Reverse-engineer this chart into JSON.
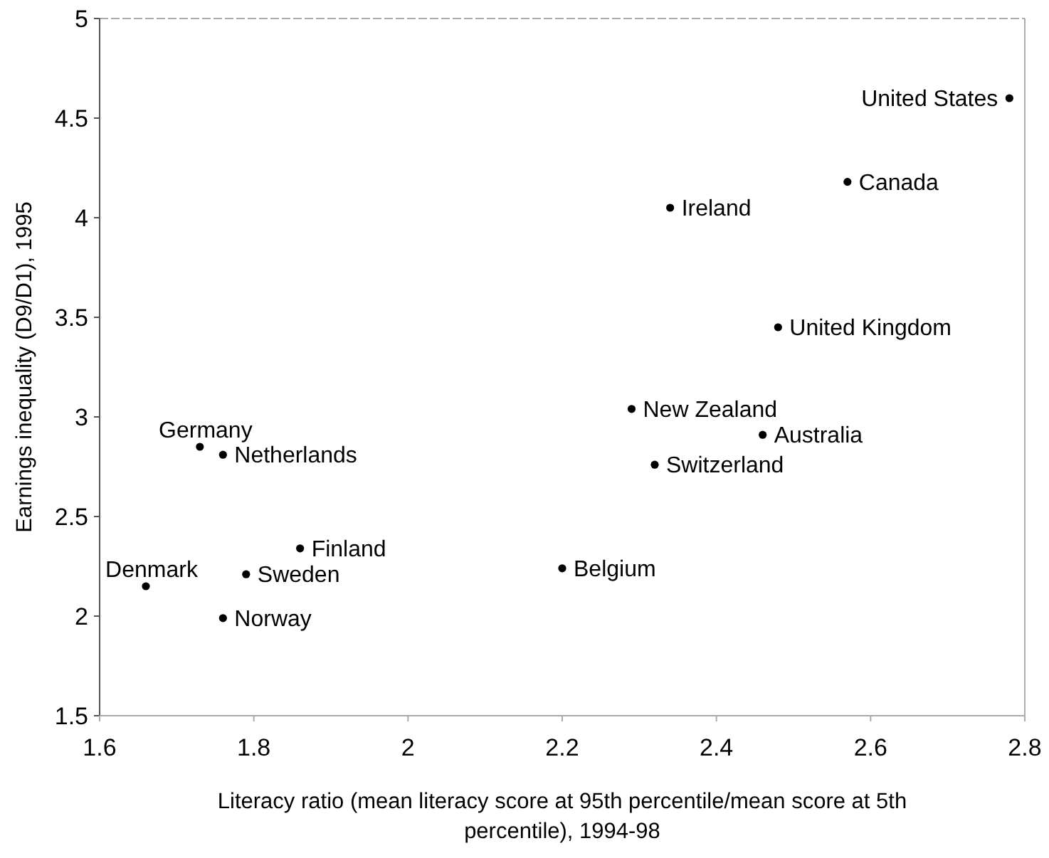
{
  "chart_data": {
    "type": "scatter",
    "xlabel": "Literacy ratio (mean literacy score at 95th percentile/mean score at 5th percentile), 1994-98",
    "ylabel": "Earnings inequality (D9/D1), 1995",
    "xlim": [
      1.6,
      2.8
    ],
    "xticks": [
      1.6,
      1.8,
      2,
      2.2,
      2.4,
      2.6,
      2.8
    ],
    "ylim": [
      1.5,
      5
    ],
    "yticks": [
      1.5,
      2,
      2.5,
      3,
      3.5,
      4,
      4.5,
      5
    ],
    "grid": false,
    "marker": "circle",
    "series": [
      {
        "color": "#000000",
        "x": [
          2.78,
          2.57,
          2.34,
          2.48,
          2.29,
          2.46,
          2.32,
          2.2,
          1.73,
          1.76,
          1.86,
          1.79,
          1.66,
          1.76
        ],
        "values": [
          4.6,
          4.18,
          4.05,
          3.45,
          3.04,
          2.91,
          2.76,
          2.24,
          2.85,
          2.81,
          2.34,
          2.21,
          2.15,
          1.99
        ]
      }
    ],
    "annotations": [
      {
        "text": "United States",
        "x": 2.78,
        "y": 4.6
      },
      {
        "text": "Canada",
        "x": 2.57,
        "y": 4.18
      },
      {
        "text": "Ireland",
        "x": 2.34,
        "y": 4.05
      },
      {
        "text": "United Kingdom",
        "x": 2.48,
        "y": 3.45
      },
      {
        "text": "New Zealand",
        "x": 2.29,
        "y": 3.04
      },
      {
        "text": "Australia",
        "x": 2.46,
        "y": 2.91
      },
      {
        "text": "Switzerland",
        "x": 2.32,
        "y": 2.76
      },
      {
        "text": "Belgium",
        "x": 2.2,
        "y": 2.24
      },
      {
        "text": "Germany",
        "x": 1.73,
        "y": 2.85
      },
      {
        "text": "Netherlands",
        "x": 1.76,
        "y": 2.81
      },
      {
        "text": "Finland",
        "x": 1.86,
        "y": 2.34
      },
      {
        "text": "Sweden",
        "x": 1.79,
        "y": 2.21
      },
      {
        "text": "Denmark",
        "x": 1.66,
        "y": 2.15
      },
      {
        "text": "Norway",
        "x": 1.76,
        "y": 1.99
      }
    ]
  }
}
